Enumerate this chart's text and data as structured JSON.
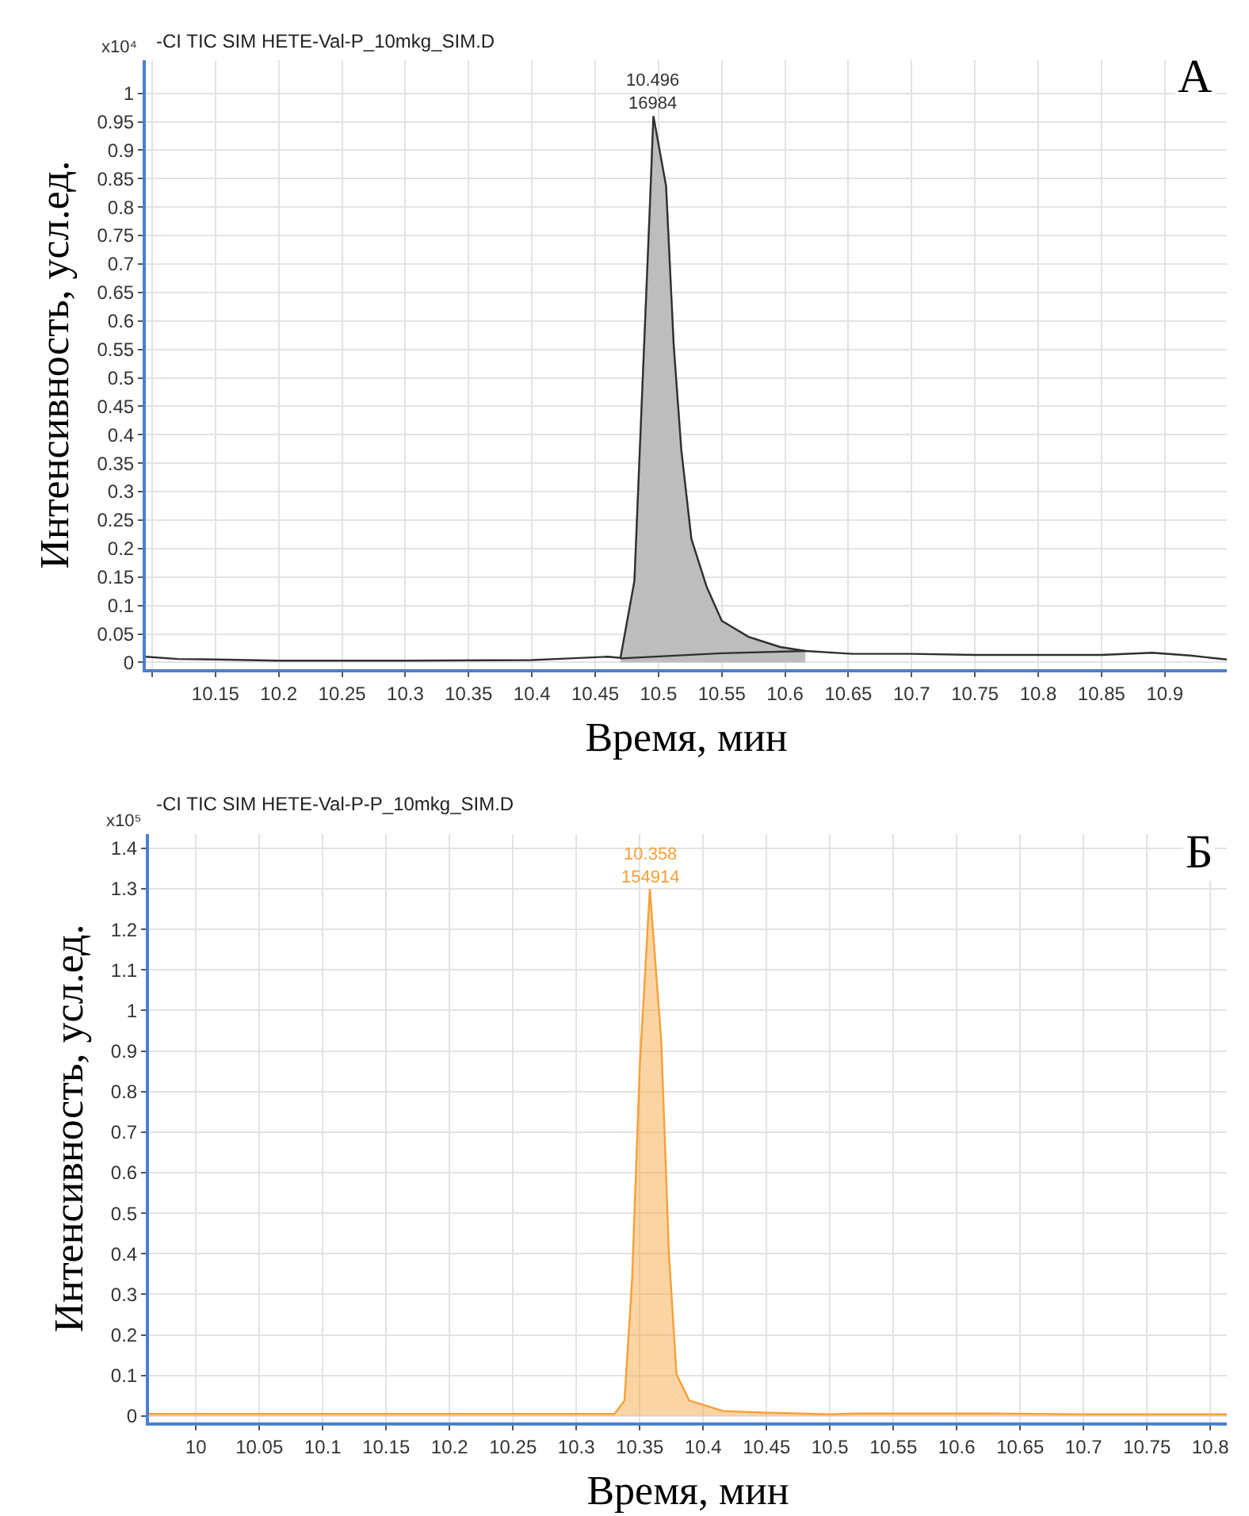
{
  "chart_data": [
    {
      "type": "line",
      "title": "-CI TIC SIM HETE-Val-P_10mkg_SIM.D",
      "xlabel": "Время, мин",
      "ylabel": "Интенсивность, усл.ед.",
      "annotations": [
        "x10⁴",
        "А",
        {
          "text": "10.496\n16984",
          "x": 10.496,
          "y": 0.96
        }
      ],
      "series": [
        {
          "type": "area",
          "color": "#bdbdbd",
          "x": [
            10.47,
            10.481,
            10.487,
            10.493,
            10.496,
            10.506,
            10.512,
            10.518,
            10.526,
            10.538,
            10.55,
            10.571,
            10.596,
            10.616
          ],
          "values": [
            0.008,
            0.143,
            0.467,
            0.79,
            0.96,
            0.837,
            0.559,
            0.374,
            0.217,
            0.133,
            0.073,
            0.045,
            0.027,
            0.02
          ]
        },
        {
          "color": "#303030",
          "x": [
            10.095,
            10.12,
            10.15,
            10.2,
            10.3,
            10.4,
            10.43,
            10.46,
            10.47,
            10.481,
            10.487,
            10.493,
            10.496,
            10.506,
            10.512,
            10.518,
            10.526,
            10.538,
            10.55,
            10.571,
            10.596,
            10.616,
            10.653,
            10.7,
            10.75,
            10.85,
            10.89,
            10.92,
            10.949
          ],
          "values": [
            0.01,
            0.006,
            0.005,
            0.003,
            0.003,
            0.004,
            0.007,
            0.01,
            0.008,
            0.143,
            0.467,
            0.79,
            0.96,
            0.837,
            0.559,
            0.374,
            0.217,
            0.133,
            0.073,
            0.045,
            0.027,
            0.02,
            0.015,
            0.015,
            0.013,
            0.013,
            0.017,
            0.012,
            0.005
          ]
        },
        {
          "color": "#303030",
          "x": [
            10.47,
            10.55,
            10.618
          ],
          "values": [
            0.007,
            0.016,
            0.02
          ]
        }
      ],
      "xlim": [
        10.095,
        10.949
      ],
      "xticks": [
        {
          "value": 10.1,
          "label": null
        },
        10.15,
        10.2,
        10.25,
        10.3,
        10.35,
        10.4,
        10.45,
        10.5,
        10.55,
        10.6,
        10.65,
        10.7,
        10.75,
        10.8,
        10.85,
        10.9
      ],
      "ylim": [
        -0.012,
        1.058
      ],
      "yticks": [
        0,
        0.05,
        0.1,
        0.15,
        0.2,
        0.25,
        0.3,
        0.35,
        0.4,
        0.45,
        0.5,
        0.55,
        0.6,
        0.65,
        0.7,
        0.75,
        0.8,
        0.85,
        0.9,
        0.95,
        1
      ],
      "grid": true
    },
    {
      "type": "area",
      "title": "-CI TIC SIM HETE-Val-P-P_10mkg_SIM.D",
      "xlabel": "Время, мин",
      "ylabel": "Интенсивность, усл.ед.",
      "annotations": [
        "x10⁵",
        "Б",
        {
          "text": "10.358\n154914",
          "x": 10.358,
          "y": 1.3
        }
      ],
      "series": [
        {
          "color": "#f7a035",
          "x": [
            9.963,
            10.1,
            10.2,
            10.3,
            10.33,
            10.338,
            10.344,
            10.35,
            10.358,
            10.367,
            10.373,
            10.379,
            10.389,
            10.416,
            10.45,
            10.5,
            10.52,
            10.63,
            10.7,
            10.813
          ],
          "values": [
            0.005,
            0.005,
            0.005,
            0.005,
            0.005,
            0.038,
            0.337,
            0.86,
            1.3,
            0.924,
            0.403,
            0.103,
            0.038,
            0.012,
            0.008,
            0.004,
            0.006,
            0.006,
            0.004,
            0.004
          ]
        }
      ],
      "xlim": [
        9.963,
        10.813
      ],
      "xticks": [
        10,
        10.05,
        10.1,
        10.15,
        10.2,
        10.25,
        10.3,
        10.35,
        10.4,
        10.45,
        10.5,
        10.55,
        10.6,
        10.65,
        10.7,
        10.75,
        10.8
      ],
      "ylim": [
        -0.016,
        1.435
      ],
      "yticks": [
        0,
        0.1,
        0.2,
        0.3,
        0.4,
        0.5,
        0.6,
        0.7,
        0.8,
        0.9,
        1,
        1.1,
        1.2,
        1.3,
        1.4
      ],
      "grid": true
    }
  ]
}
